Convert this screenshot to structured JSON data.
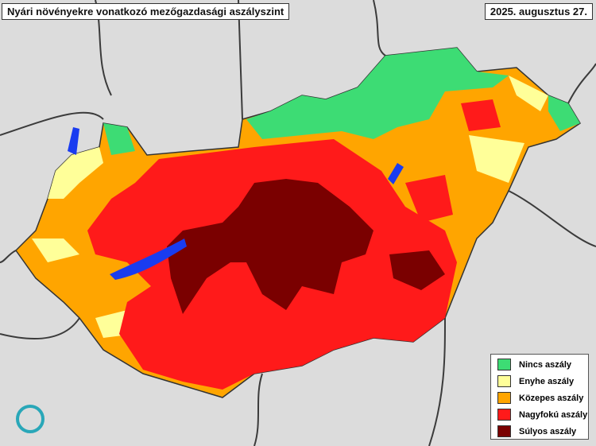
{
  "header": {
    "title": "Nyári növényekre vonatkozó mezőgazdasági aszályszint",
    "date": "2025. augusztus 27."
  },
  "legend": {
    "items": [
      {
        "label": "Nincs aszály",
        "color": "#3ddc74"
      },
      {
        "label": "Enyhe aszály",
        "color": "#ffff99"
      },
      {
        "label": "Közepes aszály",
        "color": "#ffa500"
      },
      {
        "label": "Nagyfokú aszály",
        "color": "#ff1a1a"
      },
      {
        "label": "Súlyos aszály",
        "color": "#7a0000"
      }
    ]
  }
}
